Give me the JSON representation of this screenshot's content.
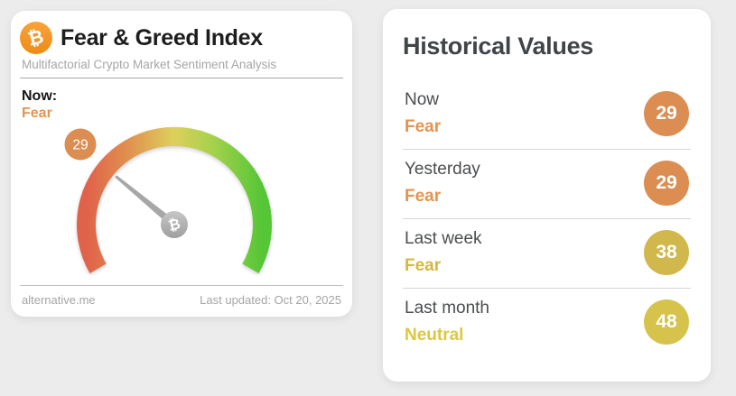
{
  "page": {
    "background": "#ececec"
  },
  "gauge_card": {
    "bitcoin_icon": "₿",
    "title": "Fear & Greed Index",
    "subtitle": "Multifactorial Crypto Market Sentiment Analysis",
    "now_label": "Now:",
    "now_classification": "Fear",
    "now_color": "#e5944e",
    "source_link": "alternative.me",
    "last_updated": "Last updated: Oct 20, 2025"
  },
  "gauge": {
    "value": 29,
    "min": 0,
    "max": 100,
    "classification": "Fear",
    "badge_color": "#db8d52",
    "arc_colors": [
      "#e0624a",
      "#e0914f",
      "#ddd05c",
      "#a5d14d",
      "#55c636"
    ],
    "needle_color": "#a7a7a7",
    "hub_icon": "₿"
  },
  "historical": {
    "title": "Historical Values",
    "rows": [
      {
        "label": "Now",
        "classification": "Fear",
        "value": 29,
        "badge_color": "#db8d52",
        "class_color": "#e5944e"
      },
      {
        "label": "Yesterday",
        "classification": "Fear",
        "value": 29,
        "badge_color": "#db8d52",
        "class_color": "#e5944e"
      },
      {
        "label": "Last week",
        "classification": "Fear",
        "value": 38,
        "badge_color": "#d0b84d",
        "class_color": "#d5b83e"
      },
      {
        "label": "Last month",
        "classification": "Neutral",
        "value": 48,
        "badge_color": "#d5c34c",
        "class_color": "#dcc83f"
      }
    ]
  },
  "chart_data": [
    {
      "type": "gauge",
      "title": "Fear & Greed Index",
      "subtitle": "Multifactorial Crypto Market Sentiment Analysis",
      "value": 29,
      "range": [
        0,
        100
      ],
      "classification": "Fear",
      "arc_span_degrees": 240,
      "color_scale": [
        "#e0624a",
        "#e0914f",
        "#ddd05c",
        "#a5d14d",
        "#55c636"
      ],
      "annotations": [
        "29"
      ]
    },
    {
      "type": "table",
      "title": "Historical Values",
      "categories": [
        "Now",
        "Yesterday",
        "Last week",
        "Last month"
      ],
      "values": [
        29,
        29,
        38,
        48
      ],
      "classifications": [
        "Fear",
        "Fear",
        "Fear",
        "Neutral"
      ]
    }
  ]
}
